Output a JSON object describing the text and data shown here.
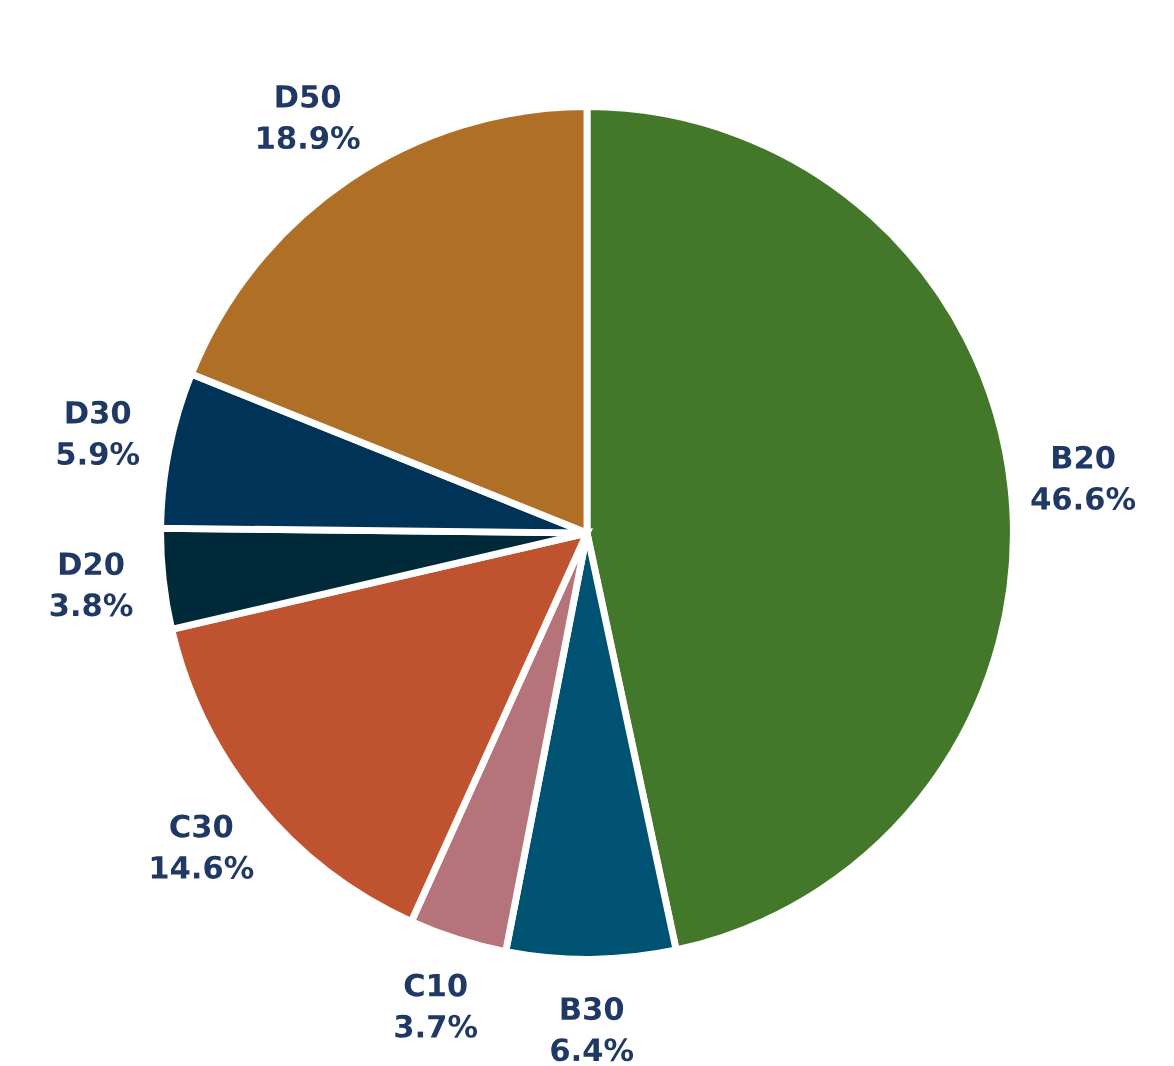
{
  "chart_data": {
    "type": "pie",
    "categories": [
      "B20",
      "B30",
      "C10",
      "C30",
      "D20",
      "D30",
      "D50"
    ],
    "values": [
      46.6,
      6.4,
      3.7,
      14.6,
      3.8,
      5.9,
      18.9
    ],
    "colors": [
      "#43782a",
      "#005272",
      "#b5737a",
      "#c0532f",
      "#00293a",
      "#003358",
      "#b06f27"
    ],
    "value_labels": [
      "46.6%",
      "6.4%",
      "3.7%",
      "14.6%",
      "3.8%",
      "5.9%",
      "18.9%"
    ]
  }
}
